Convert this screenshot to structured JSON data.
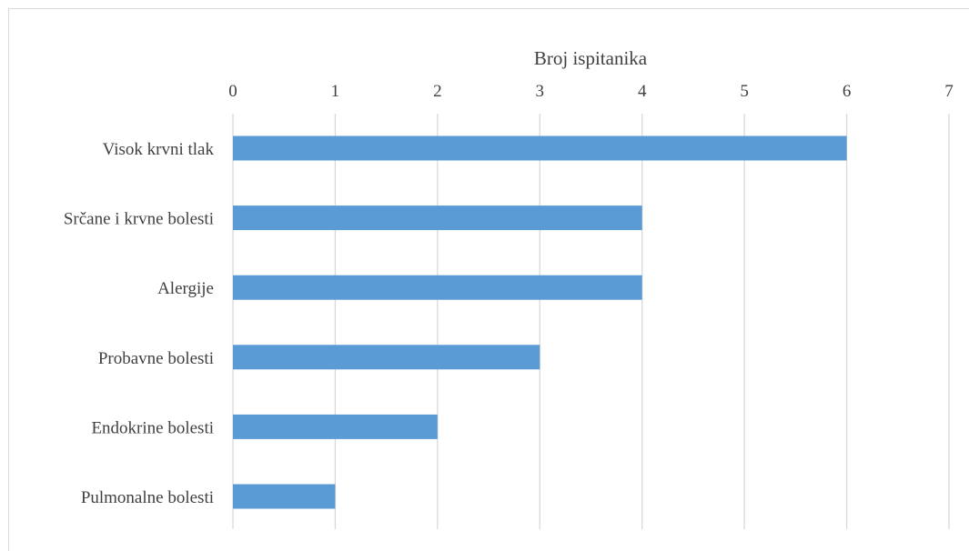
{
  "chart_data": {
    "type": "bar",
    "orientation": "horizontal",
    "xlabel": "Broj ispitanika",
    "xlim": [
      0,
      7
    ],
    "xticks": [
      "0",
      "1",
      "2",
      "3",
      "4",
      "5",
      "6",
      "7"
    ],
    "x_axis_position": "top",
    "grid": true,
    "legend": "none",
    "categories": [
      "Visok krvni tlak",
      "Srčane i krvne bolesti",
      "Alergije",
      "Probavne bolesti",
      "Endokrine bolesti",
      "Pulmonalne bolesti"
    ],
    "values": [
      6,
      4,
      4,
      3,
      2,
      1
    ],
    "bar_color": "#5b9bd5",
    "grid_color": "#d9d9d9"
  }
}
